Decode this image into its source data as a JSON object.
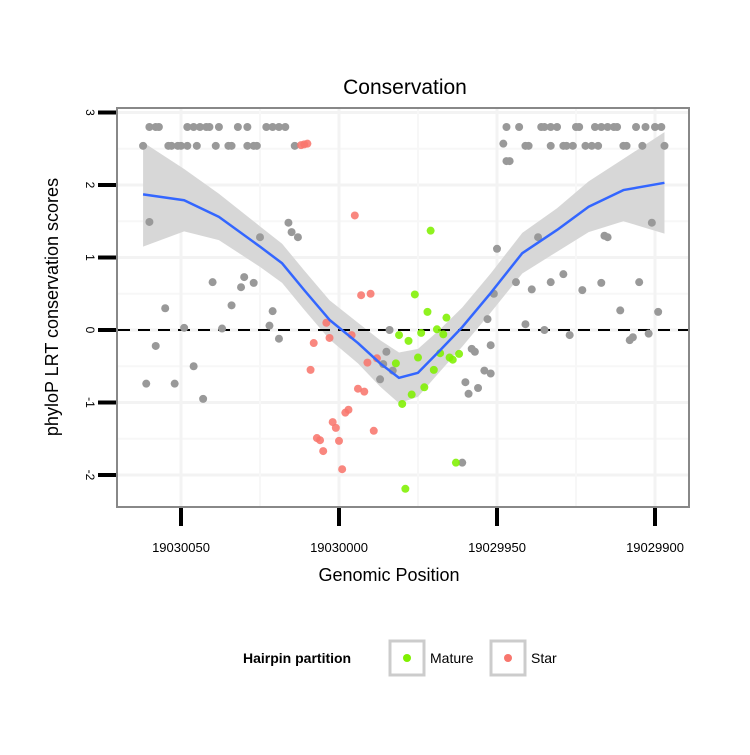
{
  "chart_data": {
    "type": "scatter",
    "title": "Conservation",
    "xlabel": "Genomic Position",
    "ylabel": "phyloP LRT conservation scores",
    "x_reversed": true,
    "xlim": [
      19030069,
      19029890
    ],
    "ylim": [
      -2.45,
      3.05
    ],
    "xticks": [
      19030050,
      19030000,
      19029950,
      19029900
    ],
    "xtick_labels": [
      "19030050",
      "19030000",
      "19029950",
      "19029900"
    ],
    "yticks": [
      3,
      2,
      1,
      0,
      -1,
      -2
    ],
    "ytick_labels": [
      "3",
      "2",
      "1",
      "0",
      "-1",
      "-2"
    ],
    "hline": 0,
    "grid": true,
    "legend": {
      "title": "Hairpin partition",
      "position": "bottom",
      "entries": [
        {
          "label": "Mature",
          "color": "#80F000"
        },
        {
          "label": "Star",
          "color": "#F8766D"
        }
      ]
    },
    "colors": {
      "none": "#999999",
      "Mature": "#80F000",
      "Star": "#F8766D",
      "fit": "#3366FF",
      "band": "#D5D5D5"
    },
    "points": [
      [
        19030060,
        2.8,
        "none"
      ],
      [
        19030058,
        2.8,
        "none"
      ],
      [
        19030057,
        2.8,
        "none"
      ],
      [
        19030048,
        2.8,
        "none"
      ],
      [
        19030046,
        2.8,
        "none"
      ],
      [
        19030044,
        2.8,
        "none"
      ],
      [
        19030042,
        2.8,
        "none"
      ],
      [
        19030041,
        2.8,
        "none"
      ],
      [
        19030038,
        2.8,
        "none"
      ],
      [
        19030032,
        2.8,
        "none"
      ],
      [
        19030029,
        2.8,
        "none"
      ],
      [
        19030023,
        2.8,
        "none"
      ],
      [
        19030021,
        2.8,
        "none"
      ],
      [
        19030019,
        2.8,
        "none"
      ],
      [
        19030017,
        2.8,
        "none"
      ],
      [
        19029947,
        2.8,
        "none"
      ],
      [
        19029943,
        2.8,
        "none"
      ],
      [
        19029936,
        2.8,
        "none"
      ],
      [
        19029935,
        2.8,
        "none"
      ],
      [
        19029933,
        2.8,
        "none"
      ],
      [
        19029931,
        2.8,
        "none"
      ],
      [
        19029925,
        2.8,
        "none"
      ],
      [
        19029924,
        2.8,
        "none"
      ],
      [
        19029919,
        2.8,
        "none"
      ],
      [
        19029917,
        2.8,
        "none"
      ],
      [
        19029915,
        2.8,
        "none"
      ],
      [
        19029913,
        2.8,
        "none"
      ],
      [
        19029912,
        2.8,
        "none"
      ],
      [
        19029906,
        2.8,
        "none"
      ],
      [
        19029903,
        2.8,
        "none"
      ],
      [
        19029900,
        2.8,
        "none"
      ],
      [
        19029898,
        2.8,
        "none"
      ],
      [
        19030062,
        2.54,
        "none"
      ],
      [
        19030054,
        2.54,
        "none"
      ],
      [
        19030053,
        2.54,
        "none"
      ],
      [
        19030051,
        2.54,
        "none"
      ],
      [
        19030050,
        2.54,
        "none"
      ],
      [
        19030048,
        2.54,
        "none"
      ],
      [
        19030045,
        2.54,
        "none"
      ],
      [
        19030039,
        2.54,
        "none"
      ],
      [
        19030035,
        2.54,
        "none"
      ],
      [
        19030034,
        2.54,
        "none"
      ],
      [
        19030029,
        2.54,
        "none"
      ],
      [
        19030027,
        2.54,
        "none"
      ],
      [
        19030026,
        2.54,
        "none"
      ],
      [
        19030014,
        2.54,
        "none"
      ],
      [
        19030012,
        2.55,
        "Star"
      ],
      [
        19030011,
        2.56,
        "Star"
      ],
      [
        19030010,
        2.57,
        "Star"
      ],
      [
        19029948,
        2.57,
        "none"
      ],
      [
        19029941,
        2.54,
        "none"
      ],
      [
        19029940,
        2.54,
        "none"
      ],
      [
        19029933,
        2.54,
        "none"
      ],
      [
        19029929,
        2.54,
        "none"
      ],
      [
        19029928,
        2.54,
        "none"
      ],
      [
        19029926,
        2.54,
        "none"
      ],
      [
        19029922,
        2.54,
        "none"
      ],
      [
        19029920,
        2.54,
        "none"
      ],
      [
        19029918,
        2.54,
        "none"
      ],
      [
        19029910,
        2.54,
        "none"
      ],
      [
        19029909,
        2.54,
        "none"
      ],
      [
        19029904,
        2.54,
        "none"
      ],
      [
        19029897,
        2.54,
        "none"
      ],
      [
        19029947,
        2.33,
        "none"
      ],
      [
        19029946,
        2.33,
        "none"
      ],
      [
        19030061,
        -0.74,
        "none"
      ],
      [
        19030060,
        1.49,
        "none"
      ],
      [
        19030058,
        -0.22,
        "none"
      ],
      [
        19030055,
        0.3,
        "none"
      ],
      [
        19030052,
        -0.74,
        "none"
      ],
      [
        19030049,
        0.03,
        "none"
      ],
      [
        19030046,
        -0.5,
        "none"
      ],
      [
        19030043,
        -0.95,
        "none"
      ],
      [
        19030040,
        0.66,
        "none"
      ],
      [
        19030037,
        0.02,
        "none"
      ],
      [
        19030034,
        0.34,
        "none"
      ],
      [
        19030031,
        0.59,
        "none"
      ],
      [
        19030030,
        0.73,
        "none"
      ],
      [
        19030027,
        0.65,
        "none"
      ],
      [
        19030025,
        1.28,
        "none"
      ],
      [
        19030022,
        0.06,
        "none"
      ],
      [
        19030021,
        0.26,
        "none"
      ],
      [
        19030019,
        -0.12,
        "none"
      ],
      [
        19030016,
        1.48,
        "none"
      ],
      [
        19030015,
        1.35,
        "none"
      ],
      [
        19030013,
        1.28,
        "none"
      ],
      [
        19029984,
        0.0,
        "none"
      ],
      [
        19029985,
        -0.3,
        "none"
      ],
      [
        19029986,
        -0.47,
        "none"
      ],
      [
        19029983,
        -0.56,
        "none"
      ],
      [
        19029987,
        -0.68,
        "none"
      ],
      [
        19029950,
        1.12,
        "none"
      ],
      [
        19029937,
        1.28,
        "none"
      ],
      [
        19029916,
        1.3,
        "none"
      ],
      [
        19029915,
        1.28,
        "none"
      ],
      [
        19029901,
        1.48,
        "none"
      ],
      [
        19029944,
        0.66,
        "none"
      ],
      [
        19029939,
        0.56,
        "none"
      ],
      [
        19029933,
        0.66,
        "none"
      ],
      [
        19029929,
        0.77,
        "none"
      ],
      [
        19029923,
        0.55,
        "none"
      ],
      [
        19029917,
        0.65,
        "none"
      ],
      [
        19029905,
        0.66,
        "none"
      ],
      [
        19029951,
        0.5,
        "none"
      ],
      [
        19029953,
        0.15,
        "none"
      ],
      [
        19029941,
        0.08,
        "none"
      ],
      [
        19029935,
        0.0,
        "none"
      ],
      [
        19029927,
        -0.07,
        "none"
      ],
      [
        19029911,
        0.27,
        "none"
      ],
      [
        19029899,
        0.25,
        "none"
      ],
      [
        19029902,
        -0.05,
        "none"
      ],
      [
        19029908,
        -0.14,
        "none"
      ],
      [
        19029907,
        -0.1,
        "none"
      ],
      [
        19029958,
        -0.26,
        "none"
      ],
      [
        19029957,
        -0.3,
        "none"
      ],
      [
        19029952,
        -0.21,
        "none"
      ],
      [
        19029954,
        -0.56,
        "none"
      ],
      [
        19029952,
        -0.6,
        "none"
      ],
      [
        19029960,
        -0.72,
        "none"
      ],
      [
        19029959,
        -0.88,
        "none"
      ],
      [
        19029956,
        -0.8,
        "none"
      ],
      [
        19029961,
        -1.83,
        "none"
      ],
      [
        19029995,
        1.58,
        "Star"
      ],
      [
        19029993,
        0.48,
        "Star"
      ],
      [
        19029990,
        0.5,
        "Star"
      ],
      [
        19030004,
        0.1,
        "Star"
      ],
      [
        19029996,
        -0.07,
        "Star"
      ],
      [
        19030003,
        -0.11,
        "Star"
      ],
      [
        19030008,
        -0.18,
        "Star"
      ],
      [
        19029988,
        -0.39,
        "Star"
      ],
      [
        19029991,
        -0.45,
        "Star"
      ],
      [
        19030009,
        -0.55,
        "Star"
      ],
      [
        19029994,
        -0.81,
        "Star"
      ],
      [
        19029992,
        -0.85,
        "Star"
      ],
      [
        19029998,
        -1.14,
        "Star"
      ],
      [
        19029997,
        -1.1,
        "Star"
      ],
      [
        19030002,
        -1.27,
        "Star"
      ],
      [
        19030001,
        -1.35,
        "Star"
      ],
      [
        19029989,
        -1.39,
        "Star"
      ],
      [
        19030007,
        -1.49,
        "Star"
      ],
      [
        19030006,
        -1.52,
        "Star"
      ],
      [
        19030000,
        -1.53,
        "Star"
      ],
      [
        19030005,
        -1.67,
        "Star"
      ],
      [
        19029999,
        -1.92,
        "Star"
      ],
      [
        19029981,
        -0.07,
        "Mature"
      ],
      [
        19029978,
        -0.15,
        "Mature"
      ],
      [
        19029982,
        -0.46,
        "Mature"
      ],
      [
        19029980,
        -1.02,
        "Mature"
      ],
      [
        19029977,
        -0.89,
        "Mature"
      ],
      [
        19029979,
        -2.19,
        "Mature"
      ],
      [
        19029976,
        0.49,
        "Mature"
      ],
      [
        19029971,
        1.37,
        "Mature"
      ],
      [
        19029972,
        0.25,
        "Mature"
      ],
      [
        19029966,
        0.17,
        "Mature"
      ],
      [
        19029974,
        -0.04,
        "Mature"
      ],
      [
        19029969,
        0.01,
        "Mature"
      ],
      [
        19029967,
        -0.06,
        "Mature"
      ],
      [
        19029975,
        -0.38,
        "Mature"
      ],
      [
        19029968,
        -0.32,
        "Mature"
      ],
      [
        19029965,
        -0.38,
        "Mature"
      ],
      [
        19029964,
        -0.41,
        "Mature"
      ],
      [
        19029962,
        -0.33,
        "Mature"
      ],
      [
        19029970,
        -0.55,
        "Mature"
      ],
      [
        19029973,
        -0.79,
        "Mature"
      ],
      [
        19029963,
        -1.83,
        "Mature"
      ]
    ],
    "fit": [
      [
        19030062,
        1.87,
        0.72
      ],
      [
        19030049,
        1.79,
        0.43
      ],
      [
        19030038,
        1.56,
        0.32
      ],
      [
        19030025,
        1.15,
        0.28
      ],
      [
        19030018,
        0.92,
        0.27
      ],
      [
        19030011,
        0.55,
        0.27
      ],
      [
        19030003,
        0.14,
        0.27
      ],
      [
        19029994,
        -0.18,
        0.28
      ],
      [
        19029987,
        -0.46,
        0.32
      ],
      [
        19029981,
        -0.66,
        0.35
      ],
      [
        19029975,
        -0.59,
        0.33
      ],
      [
        19029968,
        -0.28,
        0.29
      ],
      [
        19029961,
        0.04,
        0.27
      ],
      [
        19029952,
        0.51,
        0.27
      ],
      [
        19029942,
        1.06,
        0.28
      ],
      [
        19029931,
        1.38,
        0.3
      ],
      [
        19029921,
        1.7,
        0.35
      ],
      [
        19029910,
        1.93,
        0.43
      ],
      [
        19029897,
        2.03,
        0.7
      ]
    ]
  }
}
